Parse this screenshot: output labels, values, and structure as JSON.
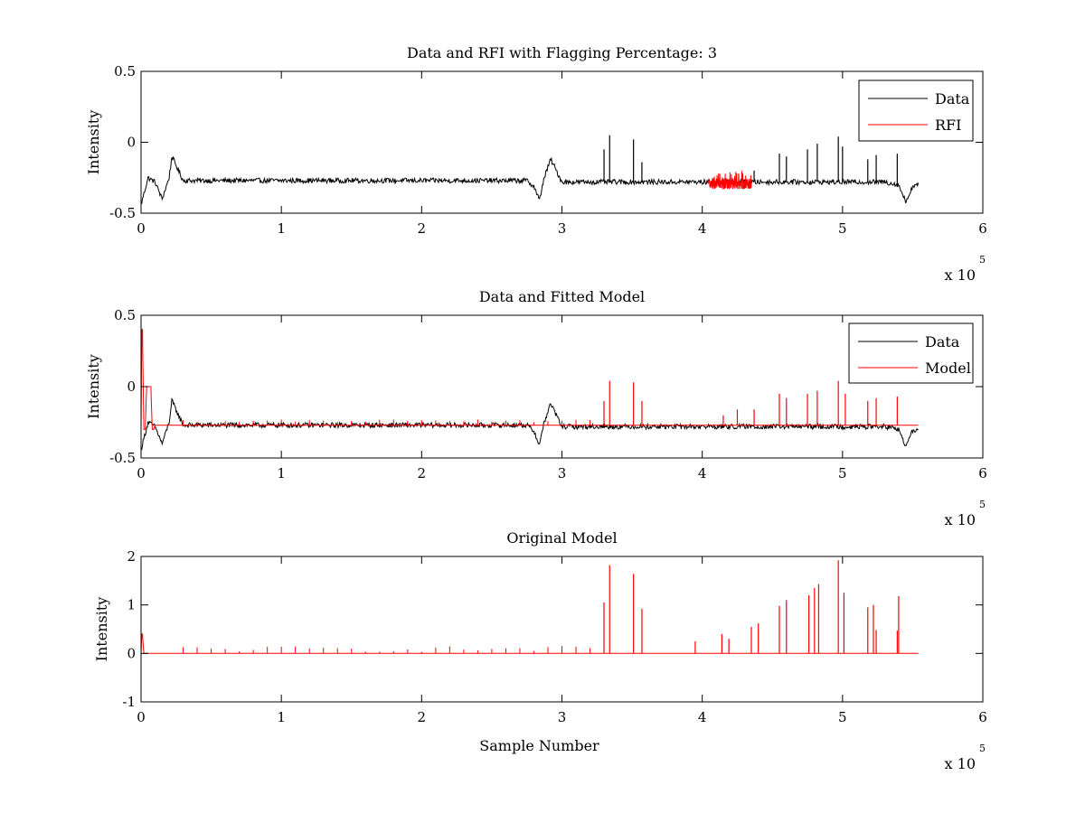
{
  "chart_data": [
    {
      "type": "line",
      "title": "Data and RFI with Flagging Percentage: 3",
      "xlabel": "",
      "ylabel": "Intensity",
      "xlim": [
        0,
        600000
      ],
      "ylim": [
        -0.5,
        0.5
      ],
      "x_ticks": [
        "0",
        "1",
        "2",
        "3",
        "4",
        "5",
        "6"
      ],
      "y_ticks": [
        "-0.5",
        "0",
        "0.5"
      ],
      "x_multiplier": "x 10",
      "x_multiplier_exponent": "5",
      "legend": {
        "position": "top-right",
        "entries": [
          "Data",
          "RFI"
        ]
      },
      "series": [
        {
          "name": "Data",
          "color": "#000000",
          "x": [
            0,
            5000,
            10000,
            15000,
            20000,
            22000,
            30000,
            60000,
            100000,
            150000,
            200000,
            250000,
            275000,
            280000,
            284000,
            287000,
            292000,
            300000,
            350000,
            400000,
            450000,
            500000,
            530000,
            540000,
            545000,
            550000,
            554000
          ],
          "y": [
            -0.44,
            -0.25,
            -0.28,
            -0.4,
            -0.25,
            -0.1,
            -0.27,
            -0.27,
            -0.27,
            -0.27,
            -0.27,
            -0.27,
            -0.27,
            -0.31,
            -0.41,
            -0.26,
            -0.12,
            -0.28,
            -0.28,
            -0.28,
            -0.28,
            -0.28,
            -0.28,
            -0.3,
            -0.42,
            -0.31,
            -0.3
          ],
          "spikes": [
            {
              "x": 330000,
              "y": -0.05
            },
            {
              "x": 334000,
              "y": 0.05
            },
            {
              "x": 351000,
              "y": 0.02
            },
            {
              "x": 357000,
              "y": -0.14
            },
            {
              "x": 437000,
              "y": -0.2
            },
            {
              "x": 455000,
              "y": -0.08
            },
            {
              "x": 460000,
              "y": -0.1
            },
            {
              "x": 475000,
              "y": -0.05
            },
            {
              "x": 482000,
              "y": -0.01
            },
            {
              "x": 497000,
              "y": 0.04
            },
            {
              "x": 500000,
              "y": -0.03
            },
            {
              "x": 518000,
              "y": -0.12
            },
            {
              "x": 524000,
              "y": -0.09
            },
            {
              "x": 539000,
              "y": -0.08
            }
          ]
        },
        {
          "name": "RFI",
          "color": "#ff0000",
          "x": [
            404000,
            435000
          ],
          "y": [
            -0.29,
            -0.29
          ],
          "band": [
            -0.33,
            -0.2
          ]
        }
      ]
    },
    {
      "type": "line",
      "title": "Data and Fitted Model",
      "xlabel": "",
      "ylabel": "Intensity",
      "xlim": [
        0,
        600000
      ],
      "ylim": [
        -0.5,
        0.5
      ],
      "x_ticks": [
        "0",
        "1",
        "2",
        "3",
        "4",
        "5",
        "6"
      ],
      "y_ticks": [
        "-0.5",
        "0",
        "0.5"
      ],
      "x_multiplier": "x 10",
      "x_multiplier_exponent": "5",
      "legend": {
        "position": "top-right",
        "entries": [
          "Data",
          "Model"
        ]
      },
      "series": [
        {
          "name": "Data",
          "color": "#000000",
          "x": [
            0,
            5000,
            10000,
            15000,
            20000,
            22000,
            30000,
            60000,
            100000,
            150000,
            200000,
            250000,
            275000,
            280000,
            284000,
            287000,
            292000,
            300000,
            350000,
            400000,
            450000,
            500000,
            530000,
            540000,
            545000,
            550000,
            554000
          ],
          "y": [
            -0.44,
            -0.25,
            -0.28,
            -0.4,
            -0.25,
            -0.1,
            -0.27,
            -0.27,
            -0.27,
            -0.27,
            -0.27,
            -0.27,
            -0.27,
            -0.31,
            -0.41,
            -0.26,
            -0.12,
            -0.28,
            -0.28,
            -0.28,
            -0.28,
            -0.28,
            -0.28,
            -0.3,
            -0.42,
            -0.31,
            -0.3
          ],
          "spikes": []
        },
        {
          "name": "Model",
          "color": "#ff0000",
          "x": [
            0,
            500,
            1000,
            2000,
            3000,
            4000,
            5000,
            6000,
            7000,
            8000,
            9000,
            10000,
            554000
          ],
          "y": [
            -0.3,
            0.4,
            0.4,
            -0.3,
            -0.3,
            0.0,
            0.0,
            0.0,
            0.0,
            -0.3,
            -0.3,
            -0.27,
            -0.27
          ],
          "spikes": [
            {
              "x": 330000,
              "y": -0.1
            },
            {
              "x": 334000,
              "y": 0.04
            },
            {
              "x": 351000,
              "y": 0.03
            },
            {
              "x": 357000,
              "y": -0.1
            },
            {
              "x": 415000,
              "y": -0.2
            },
            {
              "x": 425000,
              "y": -0.16
            },
            {
              "x": 437000,
              "y": -0.16
            },
            {
              "x": 455000,
              "y": -0.05
            },
            {
              "x": 460000,
              "y": -0.08
            },
            {
              "x": 475000,
              "y": -0.05
            },
            {
              "x": 482000,
              "y": -0.03
            },
            {
              "x": 497000,
              "y": 0.04
            },
            {
              "x": 502000,
              "y": -0.05
            },
            {
              "x": 518000,
              "y": -0.1
            },
            {
              "x": 524000,
              "y": -0.08
            },
            {
              "x": 539000,
              "y": -0.07
            }
          ]
        }
      ]
    },
    {
      "type": "line",
      "title": "Original Model",
      "xlabel": "Sample Number",
      "ylabel": "Intensity",
      "xlim": [
        0,
        600000
      ],
      "ylim": [
        -1,
        2
      ],
      "x_ticks": [
        "0",
        "1",
        "2",
        "3",
        "4",
        "5",
        "6"
      ],
      "y_ticks": [
        "-1",
        "0",
        "1",
        "2"
      ],
      "x_multiplier": "x 10",
      "x_multiplier_exponent": "5",
      "series": [
        {
          "name": "",
          "color": "#ff0000",
          "x": [
            0,
            500,
            1000,
            2000,
            554000
          ],
          "y": [
            0,
            0.4,
            0.4,
            0,
            0
          ],
          "spikes": [
            {
              "x": 330000,
              "y": 1.05
            },
            {
              "x": 334000,
              "y": 1.82
            },
            {
              "x": 351000,
              "y": 1.64
            },
            {
              "x": 357000,
              "y": 0.92
            },
            {
              "x": 395000,
              "y": 0.25
            },
            {
              "x": 414000,
              "y": 0.4
            },
            {
              "x": 419000,
              "y": 0.3
            },
            {
              "x": 435000,
              "y": 0.55
            },
            {
              "x": 440000,
              "y": 0.62
            },
            {
              "x": 455000,
              "y": 0.98
            },
            {
              "x": 460000,
              "y": 1.1
            },
            {
              "x": 476000,
              "y": 1.2
            },
            {
              "x": 480000,
              "y": 1.35
            },
            {
              "x": 483000,
              "y": 1.43
            },
            {
              "x": 497000,
              "y": 1.92
            },
            {
              "x": 501000,
              "y": 1.25
            },
            {
              "x": 518000,
              "y": 0.95
            },
            {
              "x": 522000,
              "y": 1.0
            },
            {
              "x": 524000,
              "y": 0.48
            },
            {
              "x": 539000,
              "y": 0.47
            },
            {
              "x": 540000,
              "y": 1.18
            }
          ]
        }
      ]
    }
  ]
}
